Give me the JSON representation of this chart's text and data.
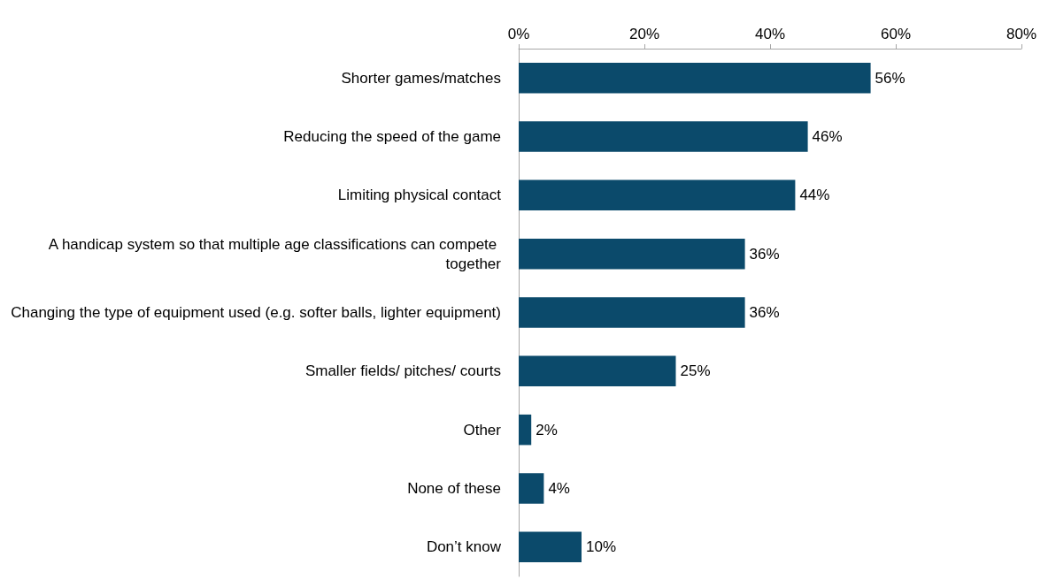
{
  "chart_data": {
    "type": "bar",
    "orientation": "horizontal",
    "categories": [
      "Shorter games/matches",
      "Reducing the speed of the game",
      "Limiting physical contact",
      "A handicap system so that multiple age classifications can compete together",
      "Changing the type of equipment used (e.g. softer balls, lighter equipment)",
      "Smaller fields/ pitches/ courts",
      "Other",
      "None of these",
      "Don’t know"
    ],
    "values": [
      56,
      46,
      44,
      36,
      36,
      25,
      2,
      4,
      10
    ],
    "value_labels": [
      "56%",
      "46%",
      "44%",
      "36%",
      "36%",
      "25%",
      "2%",
      "4%",
      "10%"
    ],
    "color": "#0b4a6b",
    "xlim": [
      0,
      80
    ],
    "xticks": [
      {
        "value": 0,
        "label": "0%"
      },
      {
        "value": 20,
        "label": "20%"
      },
      {
        "value": 40,
        "label": "40%"
      },
      {
        "value": 60,
        "label": "60%"
      },
      {
        "value": 80,
        "label": "80%"
      }
    ],
    "grid": false
  }
}
